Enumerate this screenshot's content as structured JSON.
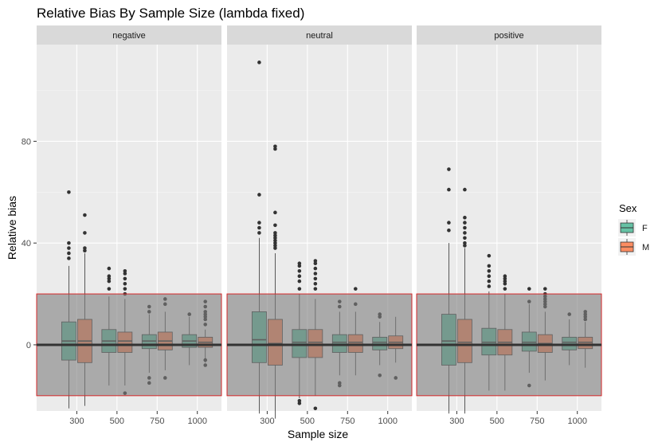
{
  "chart_data": {
    "type": "box",
    "title": "Relative Bias By Sample Size (lambda fixed)",
    "xlabel": "Sample size",
    "ylabel": "Relative bias",
    "ylim": [
      -26,
      118
    ],
    "y_ticks": [
      0,
      40,
      80
    ],
    "categories": [
      "300",
      "500",
      "750",
      "1000"
    ],
    "reference_line": 0,
    "shaded_band": [
      -20,
      20
    ],
    "grid": true,
    "legend": {
      "title": "Sex",
      "position": "right",
      "entries": [
        {
          "label": "F",
          "color": "#66C2A5"
        },
        {
          "label": "M",
          "color": "#FC8D62"
        }
      ]
    },
    "colors": {
      "F": "#66C2A5",
      "M": "#FC8D62",
      "band": "#7f7f7f",
      "band_border": "#d62728"
    },
    "panels": [
      {
        "strip": "negative",
        "groups": {
          "F": [
            {
              "x": "300",
              "lower": -25,
              "q1": -6,
              "median": 1.5,
              "q3": 9,
              "upper": 31,
              "outliers": [
                34,
                36,
                38,
                40,
                60
              ]
            },
            {
              "x": "500",
              "lower": -16,
              "q1": -3,
              "median": 1.5,
              "q3": 6,
              "upper": 19,
              "outliers": [
                22,
                25,
                26,
                27,
                30
              ]
            },
            {
              "x": "750",
              "lower": -11,
              "q1": -1.5,
              "median": 1.5,
              "q3": 4,
              "upper": 12,
              "outliers": [
                -15,
                -13,
                13,
                15
              ]
            },
            {
              "x": "1000",
              "lower": -8,
              "q1": -1,
              "median": 1.5,
              "q3": 4,
              "upper": 11,
              "outliers": [
                12
              ]
            }
          ],
          "M": [
            {
              "x": "300",
              "lower": -24,
              "q1": -7,
              "median": 1.5,
              "q3": 10,
              "upper": 36,
              "outliers": [
                37,
                38,
                44,
                51
              ]
            },
            {
              "x": "500",
              "lower": -16,
              "q1": -3,
              "median": 1.5,
              "q3": 5,
              "upper": 18,
              "outliers": [
                -19,
                20,
                22,
                24,
                26,
                28,
                29
              ]
            },
            {
              "x": "750",
              "lower": -10,
              "q1": -2,
              "median": 1.5,
              "q3": 5,
              "upper": 13,
              "outliers": [
                -13,
                16,
                18
              ]
            },
            {
              "x": "1000",
              "lower": -7,
              "q1": -1,
              "median": 1,
              "q3": 3,
              "upper": 6,
              "outliers": [
                -8,
                -6,
                8,
                10,
                11,
                12,
                13,
                15,
                17
              ]
            }
          ]
        }
      },
      {
        "strip": "neutral",
        "groups": {
          "F": [
            {
              "x": "300",
              "lower": -27,
              "q1": -7,
              "median": 2,
              "q3": 13,
              "upper": 42,
              "outliers": [
                44,
                46,
                48,
                59,
                111
              ]
            },
            {
              "x": "500",
              "lower": -21,
              "q1": -5,
              "median": 1,
              "q3": 6,
              "upper": 20,
              "outliers": [
                -23,
                -22,
                22,
                25,
                27,
                29,
                31,
                32
              ]
            },
            {
              "x": "750",
              "lower": -12,
              "q1": -3,
              "median": 1,
              "q3": 4,
              "upper": 13,
              "outliers": [
                -16,
                -15,
                15,
                17
              ]
            },
            {
              "x": "1000",
              "lower": -8,
              "q1": -2,
              "median": 1,
              "q3": 3,
              "upper": 9,
              "outliers": [
                -12,
                11,
                12
              ]
            }
          ],
          "M": [
            {
              "x": "300",
              "lower": -29,
              "q1": -8,
              "median": 0.5,
              "q3": 10,
              "upper": 36,
              "outliers": [
                38,
                39,
                40,
                41,
                42,
                43,
                44,
                47,
                52,
                77,
                78
              ]
            },
            {
              "x": "500",
              "lower": -20,
              "q1": -5,
              "median": 1,
              "q3": 6,
              "upper": 18,
              "outliers": [
                -25,
                22,
                24,
                26,
                28,
                30,
                32,
                33
              ]
            },
            {
              "x": "750",
              "lower": -12,
              "q1": -3,
              "median": 1,
              "q3": 4,
              "upper": 13,
              "outliers": [
                16,
                22
              ]
            },
            {
              "x": "1000",
              "lower": -7,
              "q1": -1.5,
              "median": 1,
              "q3": 3.5,
              "upper": 11,
              "outliers": [
                -13
              ]
            }
          ]
        }
      },
      {
        "strip": "positive",
        "groups": {
          "F": [
            {
              "x": "300",
              "lower": -27,
              "q1": -8,
              "median": 1.5,
              "q3": 12,
              "upper": 40,
              "outliers": [
                45,
                48,
                61,
                69
              ]
            },
            {
              "x": "500",
              "lower": -18,
              "q1": -4,
              "median": 1,
              "q3": 6.5,
              "upper": 21,
              "outliers": [
                23,
                25,
                27,
                29,
                31,
                35
              ]
            },
            {
              "x": "750",
              "lower": -11,
              "q1": -2.5,
              "median": 1,
              "q3": 5,
              "upper": 16,
              "outliers": [
                -16,
                17,
                22
              ]
            },
            {
              "x": "1000",
              "lower": -8,
              "q1": -2,
              "median": 1,
              "q3": 3,
              "upper": 10,
              "outliers": [
                12
              ]
            }
          ],
          "M": [
            {
              "x": "300",
              "lower": -27,
              "q1": -7,
              "median": 1,
              "q3": 10,
              "upper": 38,
              "outliers": [
                39,
                40,
                42,
                44,
                46,
                48,
                50,
                61
              ]
            },
            {
              "x": "500",
              "lower": -18,
              "q1": -4,
              "median": 1,
              "q3": 6,
              "upper": 20,
              "outliers": [
                22,
                24,
                25,
                26,
                27
              ]
            },
            {
              "x": "750",
              "lower": -14,
              "q1": -3,
              "median": 0.5,
              "q3": 4,
              "upper": 13,
              "outliers": [
                15,
                16,
                17,
                18,
                19,
                20,
                22
              ]
            },
            {
              "x": "1000",
              "lower": -9,
              "q1": -1.5,
              "median": 1,
              "q3": 3,
              "upper": 9,
              "outliers": [
                10,
                11,
                12,
                13
              ]
            }
          ]
        }
      }
    ]
  }
}
